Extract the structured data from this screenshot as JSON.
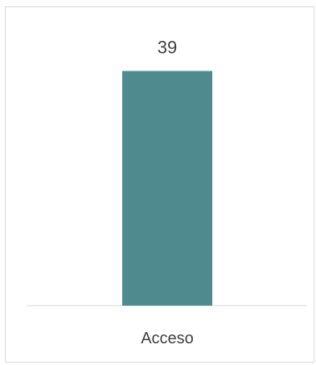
{
  "chart_data": {
    "type": "bar",
    "categories": [
      "Acceso"
    ],
    "values": [
      39
    ],
    "title": "",
    "xlabel": "",
    "ylabel": "",
    "ylim": [
      0,
      46
    ],
    "grid": false,
    "legend": "none",
    "bar_color": "#4e8a8e",
    "axis_color": "#d9d9d9",
    "text_color": "#404040",
    "data_labels": [
      "39"
    ]
  }
}
